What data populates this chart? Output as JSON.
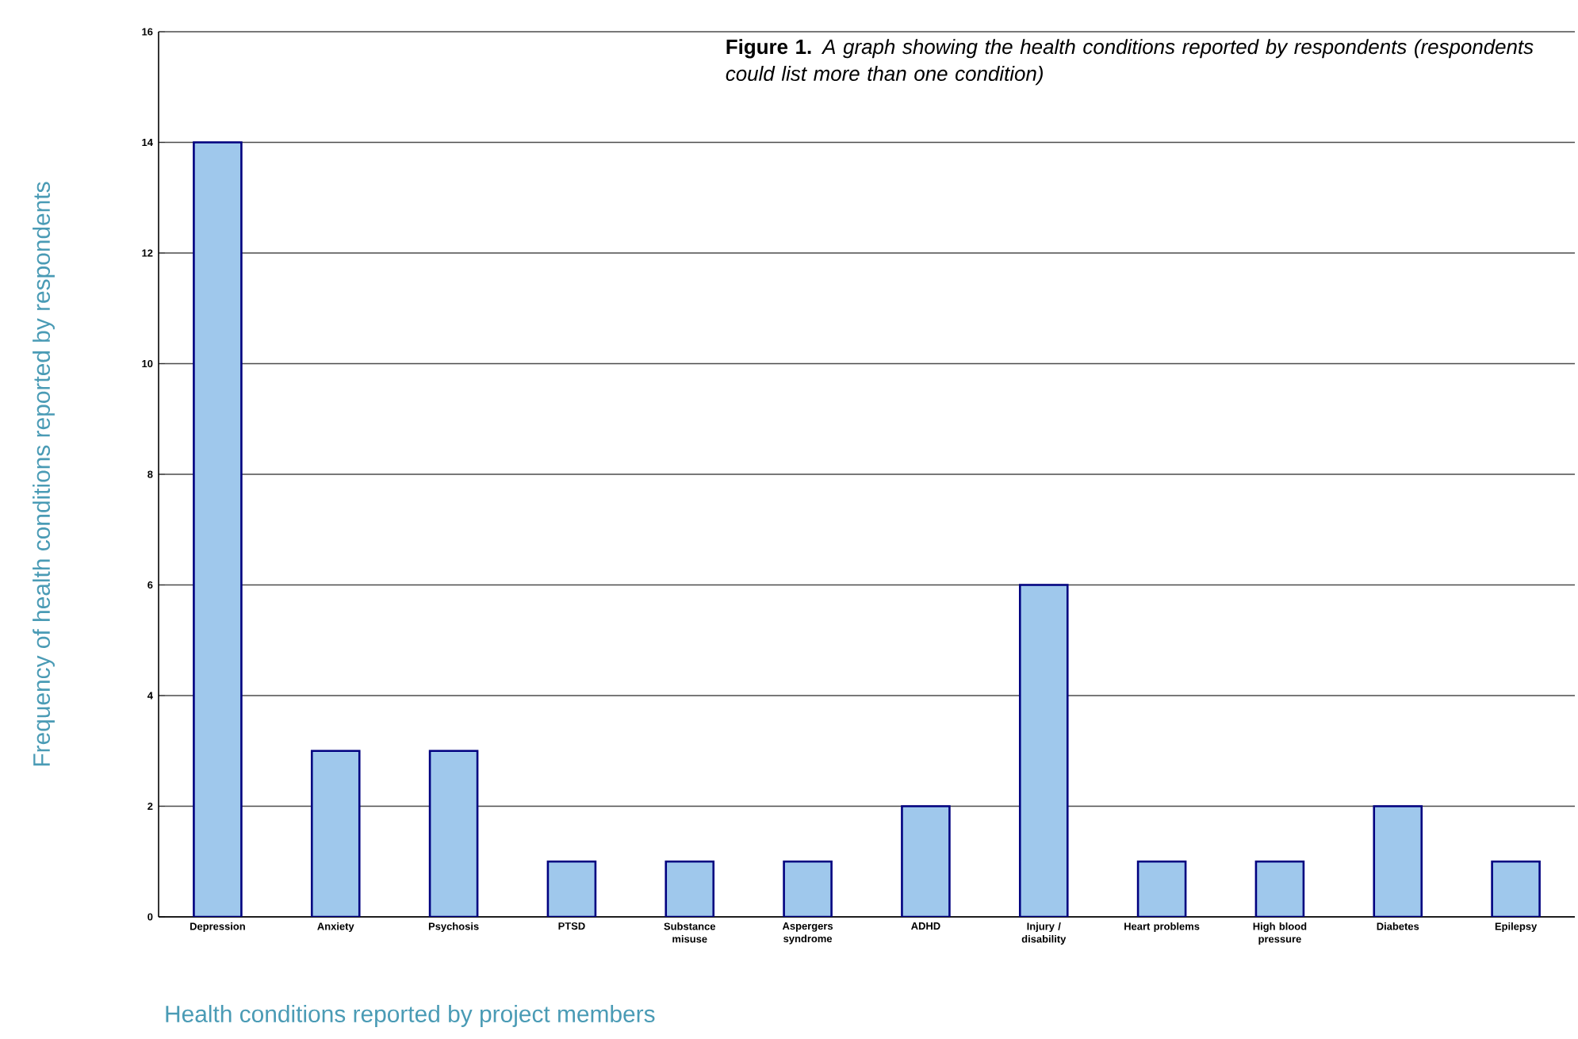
{
  "chart_data": {
    "type": "bar",
    "title": "**Figure 1.** *A graph showing the health conditions reported by respondents (respondents could list more than one condition)*",
    "xlabel": "Health conditions reported by project members",
    "ylabel": "Frequency of health conditions reported by respondents",
    "categories": [
      "Depression",
      "Anxiety",
      "Psychosis",
      "PTSD",
      "Substance misuse",
      "Aspergers syndrome",
      "ADHD",
      "Injury / disability",
      "Heart problems",
      "High blood pressure",
      "Diabetes",
      "Epilepsy"
    ],
    "values": [
      14,
      3,
      3,
      1,
      1,
      1,
      2,
      6,
      1,
      1,
      2,
      1
    ],
    "color": "#9fc8ec",
    "ylim": [
      0,
      16
    ],
    "yticks": [
      0,
      2,
      4,
      6,
      8,
      10,
      12,
      14,
      16
    ],
    "grid": "y"
  }
}
